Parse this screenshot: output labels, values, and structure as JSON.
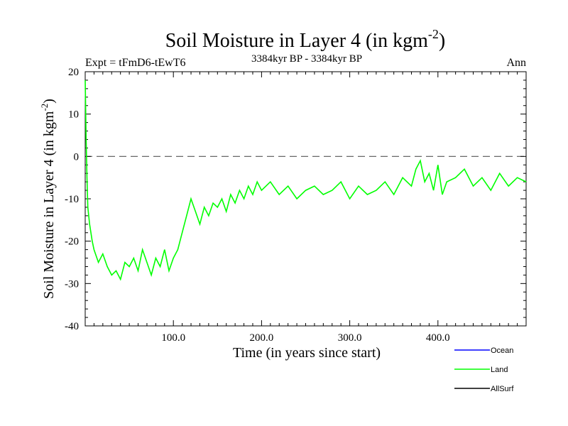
{
  "chart_data": {
    "type": "line",
    "title": "Soil Moisture in Layer 4 (in kgm",
    "title_sup": "-2",
    "title_close": ")",
    "subtitle_left": "Expt = tFmD6-tEwT6",
    "subtitle_center": "3384kyr BP - 3384kyr BP",
    "subtitle_right": "Ann",
    "xlabel": "Time (in years since start)",
    "ylabel": "Soil Moisture in Layer 4 (in kgm",
    "ylabel_sup": "-2",
    "ylabel_close": ")",
    "xlim": [
      0,
      500
    ],
    "ylim": [
      -40,
      20
    ],
    "x_ticks": [
      100,
      200,
      300,
      400
    ],
    "x_tick_labels": [
      "100.0",
      "200.0",
      "300.0",
      "400.0"
    ],
    "y_ticks": [
      -40,
      -30,
      -20,
      -10,
      0,
      10,
      20
    ],
    "y_tick_labels": [
      "-40",
      "-30",
      "-20",
      "-10",
      "0",
      "10",
      "20"
    ],
    "reference_line": 0,
    "legend": [
      {
        "name": "Ocean",
        "color": "#0000ff"
      },
      {
        "name": "Land",
        "color": "#00ff00"
      },
      {
        "name": "AllSurf",
        "color": "#000000"
      }
    ],
    "series": [
      {
        "name": "Land",
        "color": "#00ff00",
        "x": [
          0,
          1,
          2,
          3,
          5,
          8,
          10,
          15,
          20,
          25,
          30,
          35,
          40,
          45,
          50,
          55,
          60,
          65,
          70,
          75,
          80,
          85,
          90,
          95,
          100,
          105,
          110,
          115,
          120,
          125,
          130,
          135,
          140,
          145,
          150,
          155,
          160,
          165,
          170,
          175,
          180,
          185,
          190,
          195,
          200,
          210,
          220,
          230,
          240,
          250,
          260,
          270,
          280,
          290,
          300,
          310,
          320,
          330,
          340,
          350,
          360,
          370,
          375,
          380,
          385,
          390,
          395,
          400,
          405,
          410,
          420,
          430,
          440,
          450,
          460,
          470,
          480,
          490,
          500
        ],
        "values": [
          18,
          5,
          -5,
          -12,
          -16,
          -20,
          -22,
          -25,
          -23,
          -26,
          -28,
          -27,
          -29,
          -25,
          -26,
          -24,
          -27,
          -22,
          -25,
          -28,
          -24,
          -26,
          -22,
          -27,
          -24,
          -22,
          -18,
          -14,
          -10,
          -13,
          -16,
          -12,
          -14,
          -11,
          -12,
          -10,
          -13,
          -9,
          -11,
          -8,
          -10,
          -7,
          -9,
          -6,
          -8,
          -6,
          -9,
          -7,
          -10,
          -8,
          -7,
          -9,
          -8,
          -6,
          -10,
          -7,
          -9,
          -8,
          -6,
          -9,
          -5,
          -7,
          -3,
          -1,
          -6,
          -4,
          -8,
          -2,
          -9,
          -6,
          -5,
          -3,
          -7,
          -5,
          -8,
          -4,
          -7,
          -5,
          -6
        ]
      }
    ]
  }
}
